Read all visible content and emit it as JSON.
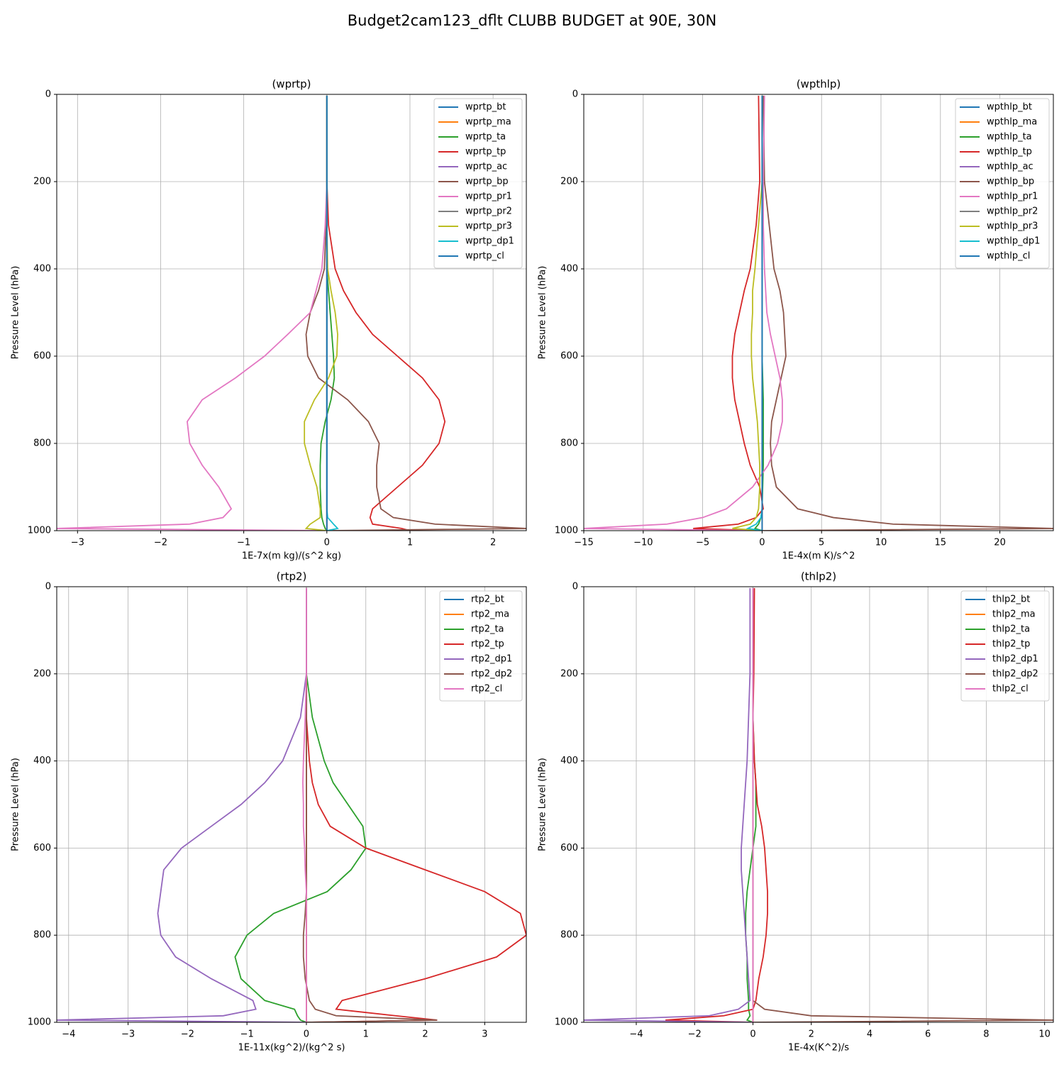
{
  "title": "Budget2cam123_dflt CLUBB BUDGET at 90E, 30N",
  "chart_data": [
    {
      "type": "line",
      "title": "(wprtp)",
      "xlabel": "1E-7x(m kg)/(s^2 kg)",
      "ylabel": "Pressure Level (hPa)",
      "xlim": [
        -3.25,
        2.4
      ],
      "xticks": [
        {
          "value": -3,
          "label": "−3"
        },
        {
          "value": -2,
          "label": "−2"
        },
        {
          "value": -1,
          "label": "−1"
        },
        0,
        1,
        2
      ],
      "ylim": [
        1000,
        0
      ],
      "yticks": [
        0,
        200,
        400,
        600,
        800,
        1000
      ],
      "grid": true,
      "legend": "upper right",
      "y": [
        3,
        200,
        300,
        400,
        450,
        500,
        550,
        600,
        650,
        700,
        750,
        800,
        850,
        900,
        950,
        970,
        985,
        995,
        1000
      ],
      "series": [
        {
          "name": "wprtp_bt",
          "color": "#1f77b4",
          "values": [
            0,
            0,
            0,
            0,
            0,
            0,
            0,
            0,
            0,
            0,
            0,
            0,
            0,
            0,
            0,
            0,
            0,
            0,
            0
          ]
        },
        {
          "name": "wprtp_ma",
          "color": "#ff7f0e",
          "values": [
            0,
            0,
            0,
            0,
            0,
            0,
            0,
            0,
            0,
            0,
            0,
            0,
            0,
            0,
            0,
            0,
            0,
            0,
            0
          ]
        },
        {
          "name": "wprtp_ta",
          "color": "#2ca02c",
          "values": [
            0,
            0,
            0,
            0,
            0.02,
            0.04,
            0.06,
            0.08,
            0.09,
            0.05,
            -0.02,
            -0.07,
            -0.08,
            -0.08,
            -0.07,
            -0.06,
            -0.04,
            -0.02,
            0
          ]
        },
        {
          "name": "wprtp_tp",
          "color": "#d62728",
          "values": [
            0,
            0,
            0.02,
            0.1,
            0.2,
            0.35,
            0.55,
            0.85,
            1.15,
            1.35,
            1.42,
            1.35,
            1.15,
            0.85,
            0.55,
            0.52,
            0.55,
            0.9,
            1.0
          ]
        },
        {
          "name": "wprtp_ac",
          "color": "#9467bd",
          "values": [
            0,
            0,
            0,
            0,
            0,
            0,
            0,
            0,
            0,
            0,
            0,
            0,
            0,
            0,
            0,
            0,
            0,
            0,
            0
          ]
        },
        {
          "name": "wprtp_bp",
          "color": "#8c564b",
          "values": [
            0,
            0,
            -0.01,
            -0.03,
            -0.1,
            -0.2,
            -0.25,
            -0.23,
            -0.1,
            0.25,
            0.5,
            0.63,
            0.6,
            0.6,
            0.65,
            0.8,
            1.3,
            2.4,
            0
          ]
        },
        {
          "name": "wprtp_pr1",
          "color": "#e377c2",
          "values": [
            0,
            0,
            -0.02,
            -0.06,
            -0.13,
            -0.2,
            -0.47,
            -0.75,
            -1.1,
            -1.5,
            -1.68,
            -1.65,
            -1.5,
            -1.3,
            -1.15,
            -1.25,
            -1.65,
            -3.25,
            0
          ]
        },
        {
          "name": "wprtp_pr2",
          "color": "#7f7f7f",
          "values": [
            0,
            0,
            0,
            0,
            0,
            0,
            0,
            0,
            0,
            0,
            0,
            0,
            0,
            0,
            0,
            0,
            0,
            0,
            0
          ]
        },
        {
          "name": "wprtp_pr3",
          "color": "#bcbd22",
          "values": [
            0,
            0,
            0,
            0.01,
            0.05,
            0.1,
            0.13,
            0.12,
            0.02,
            -0.15,
            -0.27,
            -0.27,
            -0.2,
            -0.12,
            -0.08,
            -0.08,
            -0.2,
            -0.25,
            0
          ]
        },
        {
          "name": "wprtp_dp1",
          "color": "#17becf",
          "values": [
            0,
            0,
            0,
            0,
            0,
            0,
            0,
            0,
            0,
            0,
            0,
            0,
            0,
            0,
            0,
            0.01,
            0.08,
            0.13,
            0
          ]
        },
        {
          "name": "wprtp_cl",
          "color": "#1f77b4",
          "values": [
            0,
            0,
            0,
            0,
            0,
            0,
            0,
            0,
            0,
            0,
            0,
            0,
            0,
            0,
            0,
            0,
            0,
            0,
            0
          ]
        }
      ]
    },
    {
      "type": "line",
      "title": "(wpthlp)",
      "xlabel": "1E-4x(m K)/s^2",
      "ylabel": "Pressure Level (hPa)",
      "xlim": [
        -15,
        24.5
      ],
      "xticks": [
        {
          "value": -15,
          "label": "−15"
        },
        {
          "value": -10,
          "label": "−10"
        },
        {
          "value": -5,
          "label": "−5"
        },
        0,
        5,
        10,
        15,
        20
      ],
      "ylim": [
        1000,
        0
      ],
      "yticks": [
        0,
        200,
        400,
        600,
        800,
        1000
      ],
      "grid": true,
      "legend": "upper right",
      "y": [
        3,
        200,
        300,
        400,
        450,
        500,
        550,
        600,
        650,
        700,
        750,
        800,
        850,
        900,
        950,
        970,
        985,
        995,
        1000
      ],
      "series": [
        {
          "name": "wpthlp_bt",
          "color": "#1f77b4",
          "values": [
            0,
            0,
            0,
            0,
            0,
            0,
            0,
            0,
            0,
            0,
            0,
            0,
            0,
            0,
            0,
            0,
            0,
            0,
            0
          ]
        },
        {
          "name": "wpthlp_ma",
          "color": "#ff7f0e",
          "values": [
            0,
            0,
            0,
            0,
            0,
            0,
            0,
            0,
            0,
            0,
            0,
            0,
            0,
            0,
            0,
            0,
            0,
            0,
            0
          ]
        },
        {
          "name": "wpthlp_ta",
          "color": "#2ca02c",
          "values": [
            0,
            0,
            0,
            0,
            0,
            0,
            0,
            0,
            0.05,
            0.1,
            0.1,
            0.1,
            0.1,
            0.05,
            0,
            -0.1,
            -0.3,
            -0.6,
            0
          ]
        },
        {
          "name": "wpthlp_tp",
          "color": "#d62728",
          "values": [
            -0.3,
            -0.2,
            -0.5,
            -1,
            -1.5,
            -1.9,
            -2.3,
            -2.5,
            -2.5,
            -2.3,
            -1.9,
            -1.5,
            -1,
            -0.2,
            0.1,
            -0.5,
            -2,
            -5.8,
            0
          ]
        },
        {
          "name": "wpthlp_ac",
          "color": "#9467bd",
          "values": [
            0,
            0,
            0,
            0,
            0,
            0,
            0,
            0,
            0,
            0,
            0,
            0,
            0,
            0,
            0,
            0,
            0,
            0,
            0
          ]
        },
        {
          "name": "wpthlp_bp",
          "color": "#8c564b",
          "values": [
            0.1,
            0.2,
            0.6,
            1,
            1.5,
            1.8,
            1.9,
            2,
            1.6,
            1.2,
            0.8,
            0.7,
            0.8,
            1.2,
            3,
            6,
            11,
            24.5,
            0
          ]
        },
        {
          "name": "wpthlp_pr1",
          "color": "#e377c2",
          "values": [
            0.2,
            0.1,
            0.1,
            0.2,
            0.3,
            0.4,
            0.7,
            1.1,
            1.5,
            1.7,
            1.7,
            1.3,
            0.5,
            -0.8,
            -3,
            -5,
            -8,
            -15,
            0
          ]
        },
        {
          "name": "wpthlp_pr2",
          "color": "#7f7f7f",
          "values": [
            0,
            0,
            0,
            0,
            0,
            0,
            0,
            0,
            0,
            0,
            0,
            0,
            0,
            0,
            0,
            0,
            0,
            0,
            0
          ]
        },
        {
          "name": "wpthlp_pr3",
          "color": "#bcbd22",
          "values": [
            0,
            0,
            -0.3,
            -0.6,
            -0.8,
            -0.8,
            -0.9,
            -0.9,
            -0.8,
            -0.6,
            -0.4,
            -0.3,
            -0.2,
            -0.2,
            -0.3,
            -0.5,
            -1,
            -2.5,
            0
          ]
        },
        {
          "name": "wpthlp_dp1",
          "color": "#17becf",
          "values": [
            0,
            0,
            0,
            0,
            0,
            0,
            0,
            0,
            0,
            0,
            0,
            0,
            0,
            0,
            0,
            -0.1,
            -0.5,
            -1.2,
            0
          ]
        },
        {
          "name": "wpthlp_cl",
          "color": "#1f77b4",
          "values": [
            0,
            0,
            0,
            0,
            0,
            0,
            0,
            0,
            0,
            0,
            0,
            0,
            0,
            0,
            0,
            0,
            0,
            0,
            0
          ]
        }
      ]
    },
    {
      "type": "line",
      "title": "(rtp2)",
      "xlabel": "1E-11x(kg^2)/(kg^2 s)",
      "ylabel": "Pressure Level (hPa)",
      "xlim": [
        -4.2,
        3.7
      ],
      "xticks": [
        {
          "value": -4,
          "label": "−4"
        },
        {
          "value": -3,
          "label": "−3"
        },
        {
          "value": -2,
          "label": "−2"
        },
        {
          "value": -1,
          "label": "−1"
        },
        0,
        1,
        2,
        3
      ],
      "ylim": [
        1000,
        0
      ],
      "yticks": [
        0,
        200,
        400,
        600,
        800,
        1000
      ],
      "grid": true,
      "legend": "upper right",
      "y": [
        3,
        200,
        300,
        400,
        450,
        500,
        550,
        600,
        650,
        700,
        750,
        800,
        850,
        900,
        950,
        970,
        985,
        995,
        1000
      ],
      "series": [
        {
          "name": "rtp2_bt",
          "color": "#1f77b4",
          "values": [
            0,
            0,
            0,
            0,
            0,
            0,
            0,
            0,
            0,
            0,
            0,
            0,
            0,
            0,
            0,
            0,
            0,
            0,
            0
          ]
        },
        {
          "name": "rtp2_ma",
          "color": "#ff7f0e",
          "values": [
            0,
            0,
            0,
            0,
            0,
            0,
            0,
            0,
            0,
            0,
            0,
            0,
            0,
            0,
            0,
            0,
            0,
            0,
            0
          ]
        },
        {
          "name": "rtp2_ta",
          "color": "#2ca02c",
          "values": [
            0,
            0,
            0.1,
            0.3,
            0.45,
            0.7,
            0.95,
            1,
            0.75,
            0.35,
            -0.55,
            -1,
            -1.2,
            -1.1,
            -0.7,
            -0.2,
            -0.15,
            -0.1,
            0
          ]
        },
        {
          "name": "rtp2_tp",
          "color": "#d62728",
          "values": [
            0,
            0,
            0,
            0.05,
            0.1,
            0.2,
            0.4,
            1,
            2,
            3,
            3.6,
            3.7,
            3.2,
            2,
            0.6,
            0.5,
            1.5,
            2.2,
            0
          ]
        },
        {
          "name": "rtp2_dp1",
          "color": "#9467bd",
          "values": [
            0,
            0,
            -0.1,
            -0.4,
            -0.7,
            -1.1,
            -1.6,
            -2.1,
            -2.4,
            -2.45,
            -2.5,
            -2.45,
            -2.2,
            -1.6,
            -0.9,
            -0.85,
            -1.4,
            -4.2,
            0
          ]
        },
        {
          "name": "rtp2_dp2",
          "color": "#8c564b",
          "values": [
            0,
            0,
            0,
            0,
            0,
            0,
            0,
            0,
            0,
            0,
            -0.02,
            -0.05,
            -0.05,
            -0.02,
            0.05,
            0.15,
            0.5,
            2.2,
            0
          ]
        },
        {
          "name": "rtp2_cl",
          "color": "#e377c2",
          "values": [
            0,
            0,
            -0.02,
            -0.05,
            -0.06,
            -0.05,
            -0.05,
            -0.03,
            -0.02,
            0,
            0,
            0,
            0,
            0,
            0,
            0,
            0,
            0,
            0
          ]
        }
      ]
    },
    {
      "type": "line",
      "title": "(thlp2)",
      "xlabel": "1E-4x(K^2)/s",
      "ylabel": "Pressure Level (hPa)",
      "xlim": [
        -5.8,
        10.3
      ],
      "xticks": [
        {
          "value": -4,
          "label": "−4"
        },
        {
          "value": -2,
          "label": "−2"
        },
        0,
        2,
        4,
        6,
        8,
        10
      ],
      "ylim": [
        1000,
        0
      ],
      "yticks": [
        0,
        200,
        400,
        600,
        800,
        1000
      ],
      "grid": true,
      "legend": "upper right",
      "y": [
        3,
        200,
        300,
        400,
        450,
        500,
        550,
        600,
        650,
        700,
        750,
        800,
        850,
        900,
        950,
        970,
        985,
        995,
        1000
      ],
      "series": [
        {
          "name": "thlp2_bt",
          "color": "#1f77b4",
          "values": [
            0,
            0,
            0,
            0,
            0,
            0,
            0,
            0,
            0,
            0,
            0,
            0,
            0,
            0,
            0,
            0,
            0,
            0,
            0
          ]
        },
        {
          "name": "thlp2_ma",
          "color": "#ff7f0e",
          "values": [
            0,
            0,
            0,
            0,
            0,
            0,
            0,
            0,
            0,
            0,
            0,
            0,
            0,
            0,
            0,
            0,
            0,
            0,
            0
          ]
        },
        {
          "name": "thlp2_ta",
          "color": "#2ca02c",
          "values": [
            0,
            0,
            0,
            0.05,
            0.1,
            0.1,
            0.1,
            0,
            -0.1,
            -0.2,
            -0.25,
            -0.25,
            -0.2,
            -0.2,
            -0.15,
            -0.15,
            -0.1,
            -0.2,
            0
          ]
        },
        {
          "name": "thlp2_tp",
          "color": "#d62728",
          "values": [
            0.05,
            0.03,
            0,
            0.05,
            0.1,
            0.15,
            0.3,
            0.4,
            0.45,
            0.5,
            0.5,
            0.45,
            0.35,
            0.2,
            0.1,
            0,
            -1,
            -3,
            0
          ]
        },
        {
          "name": "thlp2_dp1",
          "color": "#9467bd",
          "values": [
            -0.1,
            -0.1,
            -0.15,
            -0.2,
            -0.25,
            -0.3,
            -0.35,
            -0.4,
            -0.4,
            -0.35,
            -0.3,
            -0.25,
            -0.2,
            -0.15,
            -0.1,
            -0.5,
            -1.5,
            -5.8,
            0
          ]
        },
        {
          "name": "thlp2_dp2",
          "color": "#8c564b",
          "values": [
            0,
            0,
            0,
            0,
            0,
            0,
            0,
            0,
            0,
            0,
            0,
            0,
            0,
            0,
            0,
            0.4,
            2,
            10.3,
            0
          ]
        },
        {
          "name": "thlp2_cl",
          "color": "#e377c2",
          "values": [
            0,
            0,
            0,
            0,
            0,
            0,
            0,
            0,
            0,
            0,
            0,
            0,
            0,
            0,
            0,
            0,
            0,
            0,
            0
          ]
        }
      ]
    }
  ]
}
